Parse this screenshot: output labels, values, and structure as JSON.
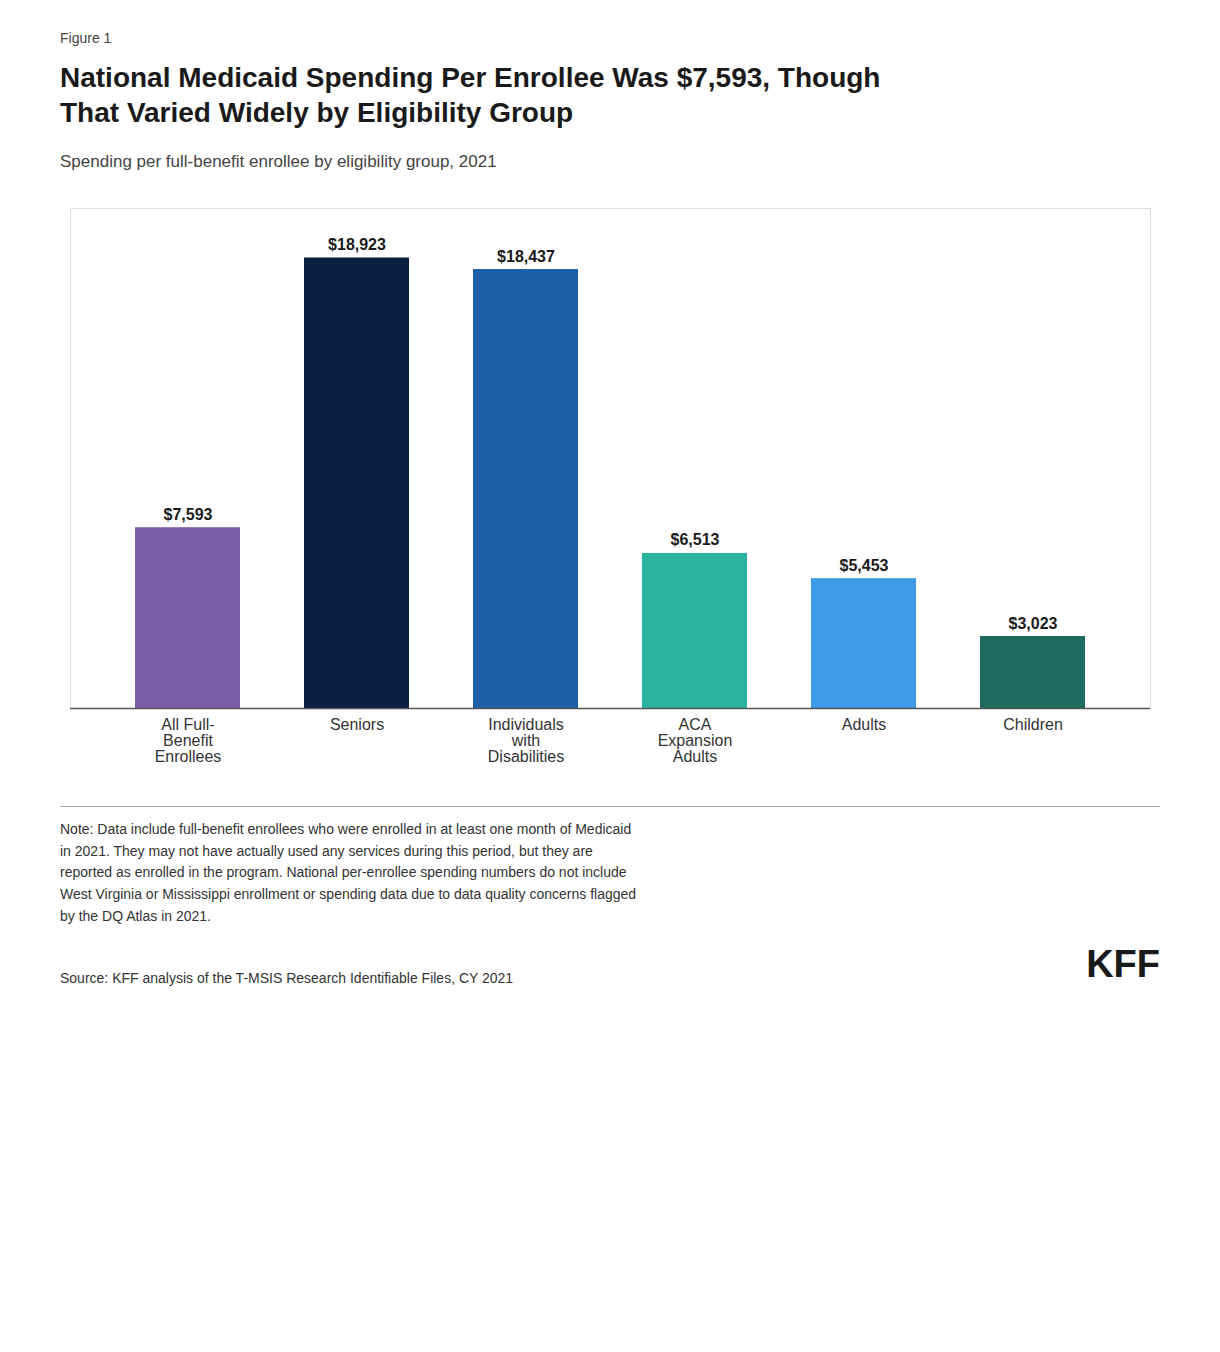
{
  "chart_data": {
    "type": "bar",
    "figure_label": "Figure 1",
    "title": "National Medicaid Spending Per Enrollee Was $7,593, Though\nThat Varied Widely by Eligibility Group",
    "subtitle": "Spending per full-benefit enrollee by eligibility group, 2021",
    "categories": [
      "All Full-\nBenefit\nEnrollees",
      "Seniors",
      "Individuals\nwith\nDisabilities",
      "ACA\nExpansion\nAdults",
      "Adults",
      "Children"
    ],
    "values": [
      7593,
      18923,
      18437,
      6513,
      5453,
      3023
    ],
    "value_labels": [
      "$7,593",
      "$18,923",
      "$18,437",
      "$6,513",
      "$5,453",
      "$3,023"
    ],
    "colors": [
      "#7B5EA7",
      "#0D1F40",
      "#1A5FA8",
      "#2BB3A0",
      "#3D9BE9",
      "#1D6B5E"
    ],
    "ylim": [
      0,
      21000
    ],
    "data_labels": true,
    "tick_labels": "x",
    "grid": false,
    "note": "Note: Data include full-benefit enrollees who were enrolled in at least one month of Medicaid\nin 2021. They may not have actually used any services during this period, but they are\nreported as enrolled in the program. National per-enrollee spending numbers do not include\nWest Virginia or Mississippi enrollment or spending data due to data quality concerns flagged\nby the DQ Atlas in 2021.",
    "source": "Source: KFF analysis of the T-MSIS Research Identifiable Files, CY 2021",
    "annotations": [
      "KFF"
    ]
  }
}
